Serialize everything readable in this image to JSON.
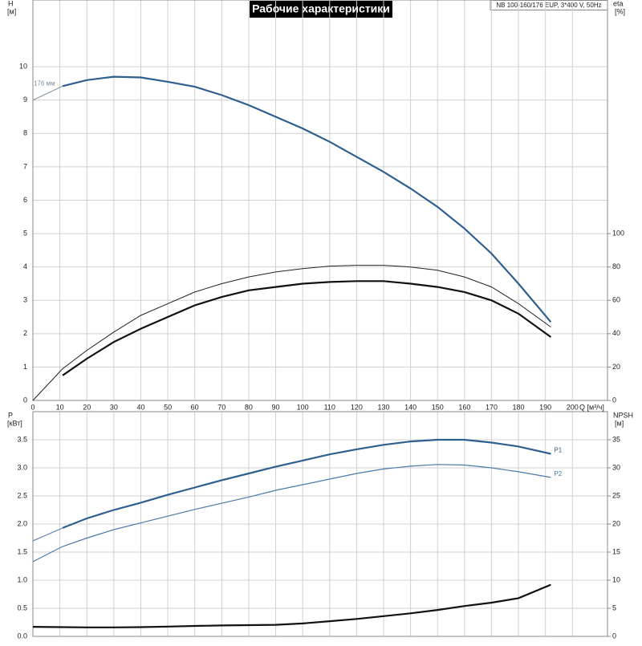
{
  "title": "Рабочие характеристики",
  "model": "NB 100-160/176 EUP, 3*400 V, 50Hz",
  "chart_data": [
    {
      "type": "line",
      "y_label": "H",
      "y_unit": "[м]",
      "y2_label": "eta",
      "y2_unit": "[%]",
      "x_label": "Q [м³/ч]",
      "x": [
        0,
        11,
        20,
        30,
        40,
        50,
        60,
        70,
        80,
        90,
        100,
        110,
        120,
        130,
        140,
        150,
        160,
        170,
        180,
        192
      ],
      "xlim": [
        0,
        213
      ],
      "xticks": [
        0,
        10,
        20,
        30,
        40,
        50,
        60,
        70,
        80,
        90,
        100,
        110,
        120,
        130,
        140,
        150,
        160,
        170,
        180,
        190,
        200
      ],
      "ylim": [
        0,
        12
      ],
      "yticks": [
        0,
        1,
        2,
        3,
        4,
        5,
        6,
        7,
        8,
        9,
        10
      ],
      "y2lim": [
        0,
        240
      ],
      "y2ticks": [
        0,
        20,
        40,
        60,
        80,
        100
      ],
      "grid": true,
      "series": [
        {
          "color": "#7a8a9a",
          "width": 1,
          "label": "176 мм",
          "values": [
            9,
            9.42,
            null,
            null,
            null,
            null,
            null,
            null,
            null,
            null,
            null,
            null,
            null,
            null,
            null,
            null,
            null,
            null,
            null,
            null
          ]
        },
        {
          "color": "#2f5f8f",
          "width": 2.2,
          "values": [
            null,
            9.42,
            9.6,
            9.7,
            9.68,
            9.55,
            9.4,
            9.15,
            8.85,
            8.5,
            8.15,
            7.75,
            7.3,
            6.85,
            6.35,
            5.8,
            5.15,
            4.4,
            3.5,
            2.35
          ]
        },
        {
          "color": "#222222",
          "width": 1,
          "axis": "y2",
          "values": [
            0,
            19,
            30,
            41,
            51,
            58,
            65,
            70,
            74,
            77,
            79,
            80.5,
            81,
            81,
            80,
            78,
            74,
            68,
            58,
            44
          ]
        },
        {
          "color": "#111111",
          "width": 2.2,
          "axis": "y2",
          "values": [
            null,
            15,
            25,
            35,
            43,
            50,
            57,
            62,
            66,
            68,
            70,
            71,
            71.5,
            71.5,
            70,
            68,
            65,
            60,
            52,
            38
          ]
        }
      ]
    },
    {
      "type": "line",
      "y_label": "P",
      "y_unit": "[кВт]",
      "y2_label": "NPSH",
      "y2_unit": "[м]",
      "x": [
        0,
        11,
        20,
        30,
        40,
        50,
        60,
        70,
        80,
        90,
        100,
        110,
        120,
        130,
        140,
        150,
        160,
        170,
        180,
        192
      ],
      "xlim": [
        0,
        213
      ],
      "xticks": [
        0,
        10,
        20,
        30,
        40,
        50,
        60,
        70,
        80,
        90,
        100,
        110,
        120,
        130,
        140,
        150,
        160,
        170,
        180,
        190,
        200
      ],
      "ylim": [
        0,
        4
      ],
      "yticks": [
        {
          "value": 0,
          "label": "0.0"
        },
        0.5,
        {
          "value": 1,
          "label": "1.0"
        },
        1.5,
        {
          "value": 2,
          "label": "2.0"
        },
        2.5,
        {
          "value": 3,
          "label": "3.0"
        },
        3.5
      ],
      "y2lim": [
        0,
        40
      ],
      "y2ticks": [
        0,
        5,
        10,
        15,
        20,
        25,
        30,
        35
      ],
      "grid": true,
      "series": [
        {
          "color": "#4a7aa8",
          "width": 1,
          "values": [
            1.7,
            1.93,
            null,
            null,
            null,
            null,
            null,
            null,
            null,
            null,
            null,
            null,
            null,
            null,
            null,
            null,
            null,
            null,
            null,
            null
          ]
        },
        {
          "color": "#2f5f8f",
          "width": 2.2,
          "label": "P1",
          "values": [
            null,
            1.93,
            2.1,
            2.25,
            2.38,
            2.52,
            2.65,
            2.78,
            2.9,
            3.02,
            3.13,
            3.24,
            3.33,
            3.41,
            3.47,
            3.5,
            3.5,
            3.45,
            3.38,
            3.25
          ]
        },
        {
          "color": "#4a7aa8",
          "width": 1.2,
          "label": "P2",
          "values": [
            1.33,
            1.6,
            1.75,
            1.9,
            2.02,
            2.14,
            2.26,
            2.37,
            2.48,
            2.6,
            2.7,
            2.8,
            2.9,
            2.98,
            3.03,
            3.06,
            3.05,
            3,
            2.93,
            2.83
          ]
        },
        {
          "color": "#111111",
          "width": 2.2,
          "axis": "y2",
          "values": [
            1.7,
            1.65,
            1.6,
            1.6,
            1.65,
            1.75,
            1.85,
            1.95,
            2,
            2.05,
            2.3,
            2.7,
            3.1,
            3.6,
            4.1,
            4.7,
            5.4,
            6,
            6.8,
            9.2
          ]
        }
      ]
    }
  ]
}
